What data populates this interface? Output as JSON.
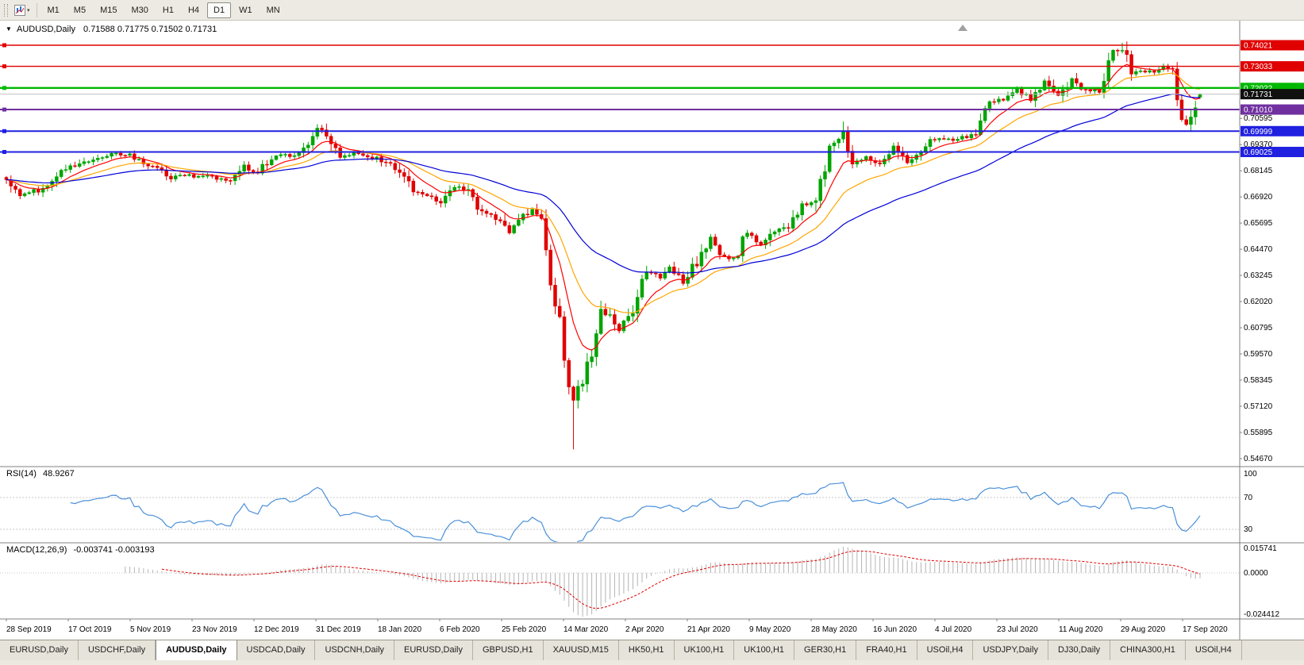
{
  "icons": {
    "collapse": "▼",
    "dropdown": "▾",
    "shift_marker": "▲"
  },
  "toolbar": {
    "timeframes": [
      "M1",
      "M5",
      "M15",
      "M30",
      "H1",
      "H4",
      "D1",
      "W1",
      "MN"
    ],
    "active": "D1"
  },
  "chart": {
    "title": "AUDUSD,Daily",
    "ohlc": "0.71588 0.71775 0.71502 0.71731"
  },
  "rsi": {
    "label": "RSI(14)",
    "value": "48.9267",
    "axis_labels": [
      "100",
      "70",
      "30"
    ],
    "color": "#4A90D9"
  },
  "macd": {
    "label": "MACD(12,26,9)",
    "values": "-0.003741 -0.003193",
    "axis_labels": [
      "0.015741",
      "0.0000",
      "-0.024412"
    ],
    "histogram_color": "#b4b4b4",
    "signal_color": "#e00000"
  },
  "price_axis": {
    "ticks": [
      "0.70595",
      "0.69370",
      "0.68145",
      "0.66920",
      "0.65695",
      "0.64470",
      "0.63245",
      "0.62020",
      "0.60795",
      "0.59570",
      "0.58345",
      "0.57120",
      "0.55895",
      "0.54670"
    ]
  },
  "current_price": {
    "value": "0.71731",
    "badge_bg": "#101010"
  },
  "levels": [
    {
      "value": "0.74021",
      "color": "#E00000",
      "width": 1.4
    },
    {
      "value": "0.73033",
      "color": "#E00000",
      "width": 1.4
    },
    {
      "value": "0.72022",
      "color": "#00B800",
      "width": 2.4
    },
    {
      "value": "0.71010",
      "color": "#7030A0",
      "width": 2
    },
    {
      "value": "0.69999",
      "color": "#2020E0",
      "width": 2
    },
    {
      "value": "0.69025",
      "color": "#2020E0",
      "width": 2
    }
  ],
  "dates": [
    "28 Sep 2019",
    "17 Oct 2019",
    "5 Nov 2019",
    "23 Nov 2019",
    "12 Dec 2019",
    "31 Dec 2019",
    "18 Jan 2020",
    "6 Feb 2020",
    "25 Feb 2020",
    "14 Mar 2020",
    "2 Apr 2020",
    "21 Apr 2020",
    "9 May 2020",
    "28 May 2020",
    "16 Jun 2020",
    "4 Jul 2020",
    "23 Jul 2020",
    "11 Aug 2020",
    "29 Aug 2020",
    "17 Sep 2020"
  ],
  "tabs": {
    "active_index": 2,
    "items": [
      "EURUSD,Daily",
      "USDCHF,Daily",
      "AUDUSD,Daily",
      "USDCAD,Daily",
      "USDCNH,Daily",
      "EURUSD,Daily",
      "GBPUSD,H1",
      "XAUUSD,M15",
      "HK50,H1",
      "UK100,H1",
      "UK100,H1",
      "GER30,H1",
      "FRA40,H1",
      "USOil,H4",
      "USDJPY,Daily",
      "DJ30,Daily",
      "CHINA300,H1",
      "USOil,H4"
    ]
  },
  "chart_data": {
    "type": "candlestick",
    "symbol": "AUDUSD",
    "period": "Daily",
    "visible_range": {
      "start": "28 Sep 2019",
      "end": "24 Sep 2020"
    },
    "price_range": [
      0.5437,
      0.7502
    ],
    "num_candles": 262,
    "up_color": "#00A400",
    "down_color": "#E00000",
    "anchors": [
      [
        0,
        0.677
      ],
      [
        3,
        0.67
      ],
      [
        8,
        0.673
      ],
      [
        13,
        0.682
      ],
      [
        18,
        0.686
      ],
      [
        23,
        0.69
      ],
      [
        27,
        0.689
      ],
      [
        31,
        0.684
      ],
      [
        36,
        0.6785
      ],
      [
        40,
        0.679
      ],
      [
        45,
        0.6785
      ],
      [
        48,
        0.6765
      ],
      [
        52,
        0.6835
      ],
      [
        55,
        0.681
      ],
      [
        58,
        0.688
      ],
      [
        62,
        0.6885
      ],
      [
        65,
        0.692
      ],
      [
        68,
        0.702
      ],
      [
        70,
        0.699
      ],
      [
        73,
        0.687
      ],
      [
        77,
        0.69
      ],
      [
        81,
        0.687
      ],
      [
        85,
        0.683
      ],
      [
        89,
        0.672
      ],
      [
        92,
        0.669
      ],
      [
        95,
        0.667
      ],
      [
        98,
        0.674
      ],
      [
        101,
        0.672
      ],
      [
        104,
        0.662
      ],
      [
        107,
        0.66
      ],
      [
        110,
        0.6515
      ],
      [
        112,
        0.659
      ],
      [
        115,
        0.664
      ],
      [
        117,
        0.658
      ],
      [
        119,
        0.629
      ],
      [
        121,
        0.612
      ],
      [
        123,
        0.578
      ],
      [
        124,
        0.574
      ],
      [
        126,
        0.582
      ],
      [
        128,
        0.597
      ],
      [
        130,
        0.617
      ],
      [
        132,
        0.613
      ],
      [
        134,
        0.606
      ],
      [
        137,
        0.617
      ],
      [
        140,
        0.635
      ],
      [
        143,
        0.632
      ],
      [
        145,
        0.636
      ],
      [
        148,
        0.629
      ],
      [
        151,
        0.639
      ],
      [
        154,
        0.651
      ],
      [
        156,
        0.642
      ],
      [
        159,
        0.64
      ],
      [
        162,
        0.653
      ],
      [
        165,
        0.647
      ],
      [
        168,
        0.653
      ],
      [
        171,
        0.656
      ],
      [
        174,
        0.665
      ],
      [
        177,
        0.667
      ],
      [
        180,
        0.692
      ],
      [
        183,
        0.7
      ],
      [
        185,
        0.685
      ],
      [
        188,
        0.688
      ],
      [
        191,
        0.685
      ],
      [
        194,
        0.693
      ],
      [
        197,
        0.686
      ],
      [
        200,
        0.691
      ],
      [
        203,
        0.697
      ],
      [
        206,
        0.696
      ],
      [
        209,
        0.697
      ],
      [
        212,
        0.699
      ],
      [
        215,
        0.714
      ],
      [
        218,
        0.715
      ],
      [
        221,
        0.719
      ],
      [
        224,
        0.715
      ],
      [
        227,
        0.723
      ],
      [
        230,
        0.716
      ],
      [
        233,
        0.725
      ],
      [
        236,
        0.719
      ],
      [
        239,
        0.719
      ],
      [
        242,
        0.736
      ],
      [
        244,
        0.739
      ],
      [
        246,
        0.728
      ],
      [
        248,
        0.728
      ],
      [
        251,
        0.728
      ],
      [
        253,
        0.73
      ],
      [
        255,
        0.729
      ],
      [
        257,
        0.703
      ],
      [
        259,
        0.706
      ],
      [
        261,
        0.71731
      ]
    ],
    "extremes": [
      {
        "index": 124,
        "price": 0.551,
        "side": "low"
      },
      {
        "index": 244,
        "price": 0.7414,
        "side": "high"
      },
      {
        "index": 183,
        "price": 0.7045,
        "side": "high"
      },
      {
        "index": 68,
        "price": 0.7032,
        "side": "high"
      }
    ],
    "last_candle": {
      "open": 0.71588,
      "high": 0.71775,
      "low": 0.71502,
      "close": 0.71731
    },
    "moving_averages": [
      {
        "period": 9,
        "color": "#FF0000"
      },
      {
        "period": 21,
        "color": "#FFA500"
      },
      {
        "period": 50,
        "color": "#0000D8"
      }
    ],
    "indicators": [
      {
        "name": "RSI",
        "period": 14,
        "last": 48.9267,
        "levels": [
          70,
          30
        ]
      },
      {
        "name": "MACD",
        "fast": 12,
        "slow": 26,
        "signal": 9,
        "last": [
          -0.003741,
          -0.003193
        ]
      }
    ],
    "horizontal_levels": [
      0.74021,
      0.73033,
      0.72022,
      0.7101,
      0.69999,
      0.69025
    ]
  }
}
